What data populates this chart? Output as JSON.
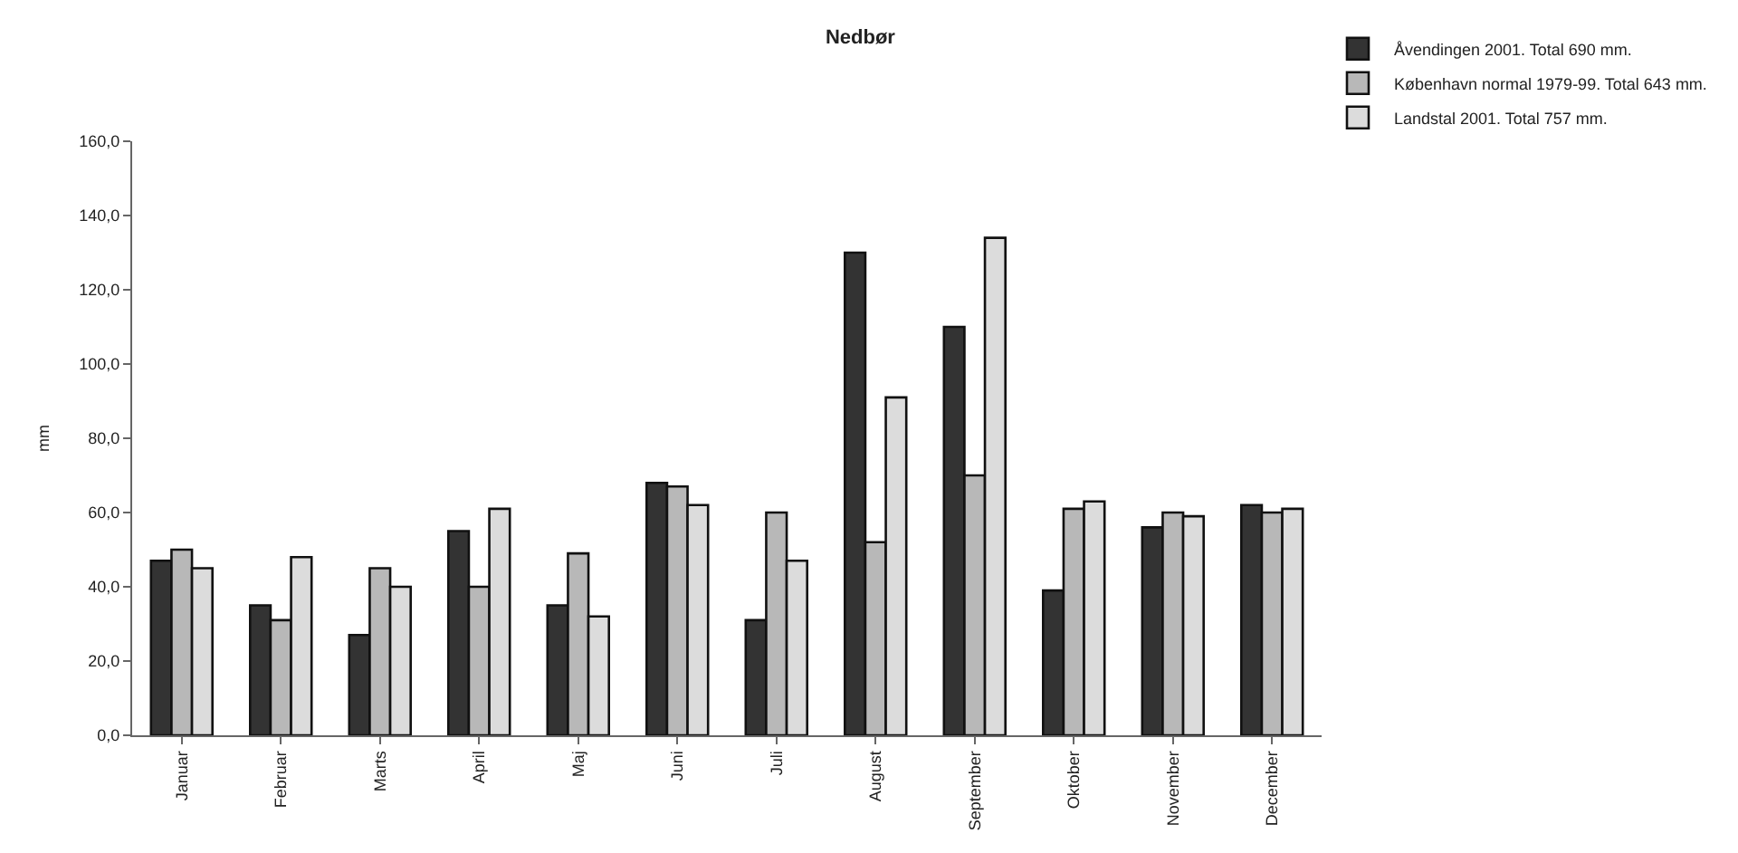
{
  "chart_data": {
    "type": "bar",
    "title": "Nedbør",
    "ylabel": "mm",
    "categories": [
      "Januar",
      "Februar",
      "Marts",
      "April",
      "Maj",
      "Juni",
      "Juli",
      "August",
      "September",
      "Oktober",
      "November",
      "December"
    ],
    "series": [
      {
        "name": "Åvendingen 2001. Total 690 mm.",
        "color": "#333333",
        "values": [
          47,
          35,
          27,
          55,
          35,
          68,
          31,
          130,
          110,
          39,
          56,
          62
        ]
      },
      {
        "name": "København normal 1979-99. Total 643 mm.",
        "color": "#b8b8b8",
        "values": [
          50,
          31,
          45,
          40,
          49,
          67,
          60,
          52,
          70,
          61,
          60,
          60
        ]
      },
      {
        "name": "Landstal 2001. Total 757 mm.",
        "color": "#dcdcdc",
        "values": [
          45,
          48,
          40,
          61,
          32,
          62,
          47,
          91,
          134,
          63,
          59,
          61
        ]
      }
    ],
    "ylim": [
      0,
      160
    ],
    "yticks": [
      {
        "value": 0,
        "label": "0,0"
      },
      {
        "value": 20,
        "label": "20,0"
      },
      {
        "value": 40,
        "label": "40,0"
      },
      {
        "value": 60,
        "label": "60,0"
      },
      {
        "value": 80,
        "label": "80,0"
      },
      {
        "value": 100,
        "label": "100,0"
      },
      {
        "value": 120,
        "label": "120,0"
      },
      {
        "value": 140,
        "label": "140,0"
      },
      {
        "value": 160,
        "label": "160,0"
      }
    ],
    "grid": false,
    "legend": "top right"
  }
}
